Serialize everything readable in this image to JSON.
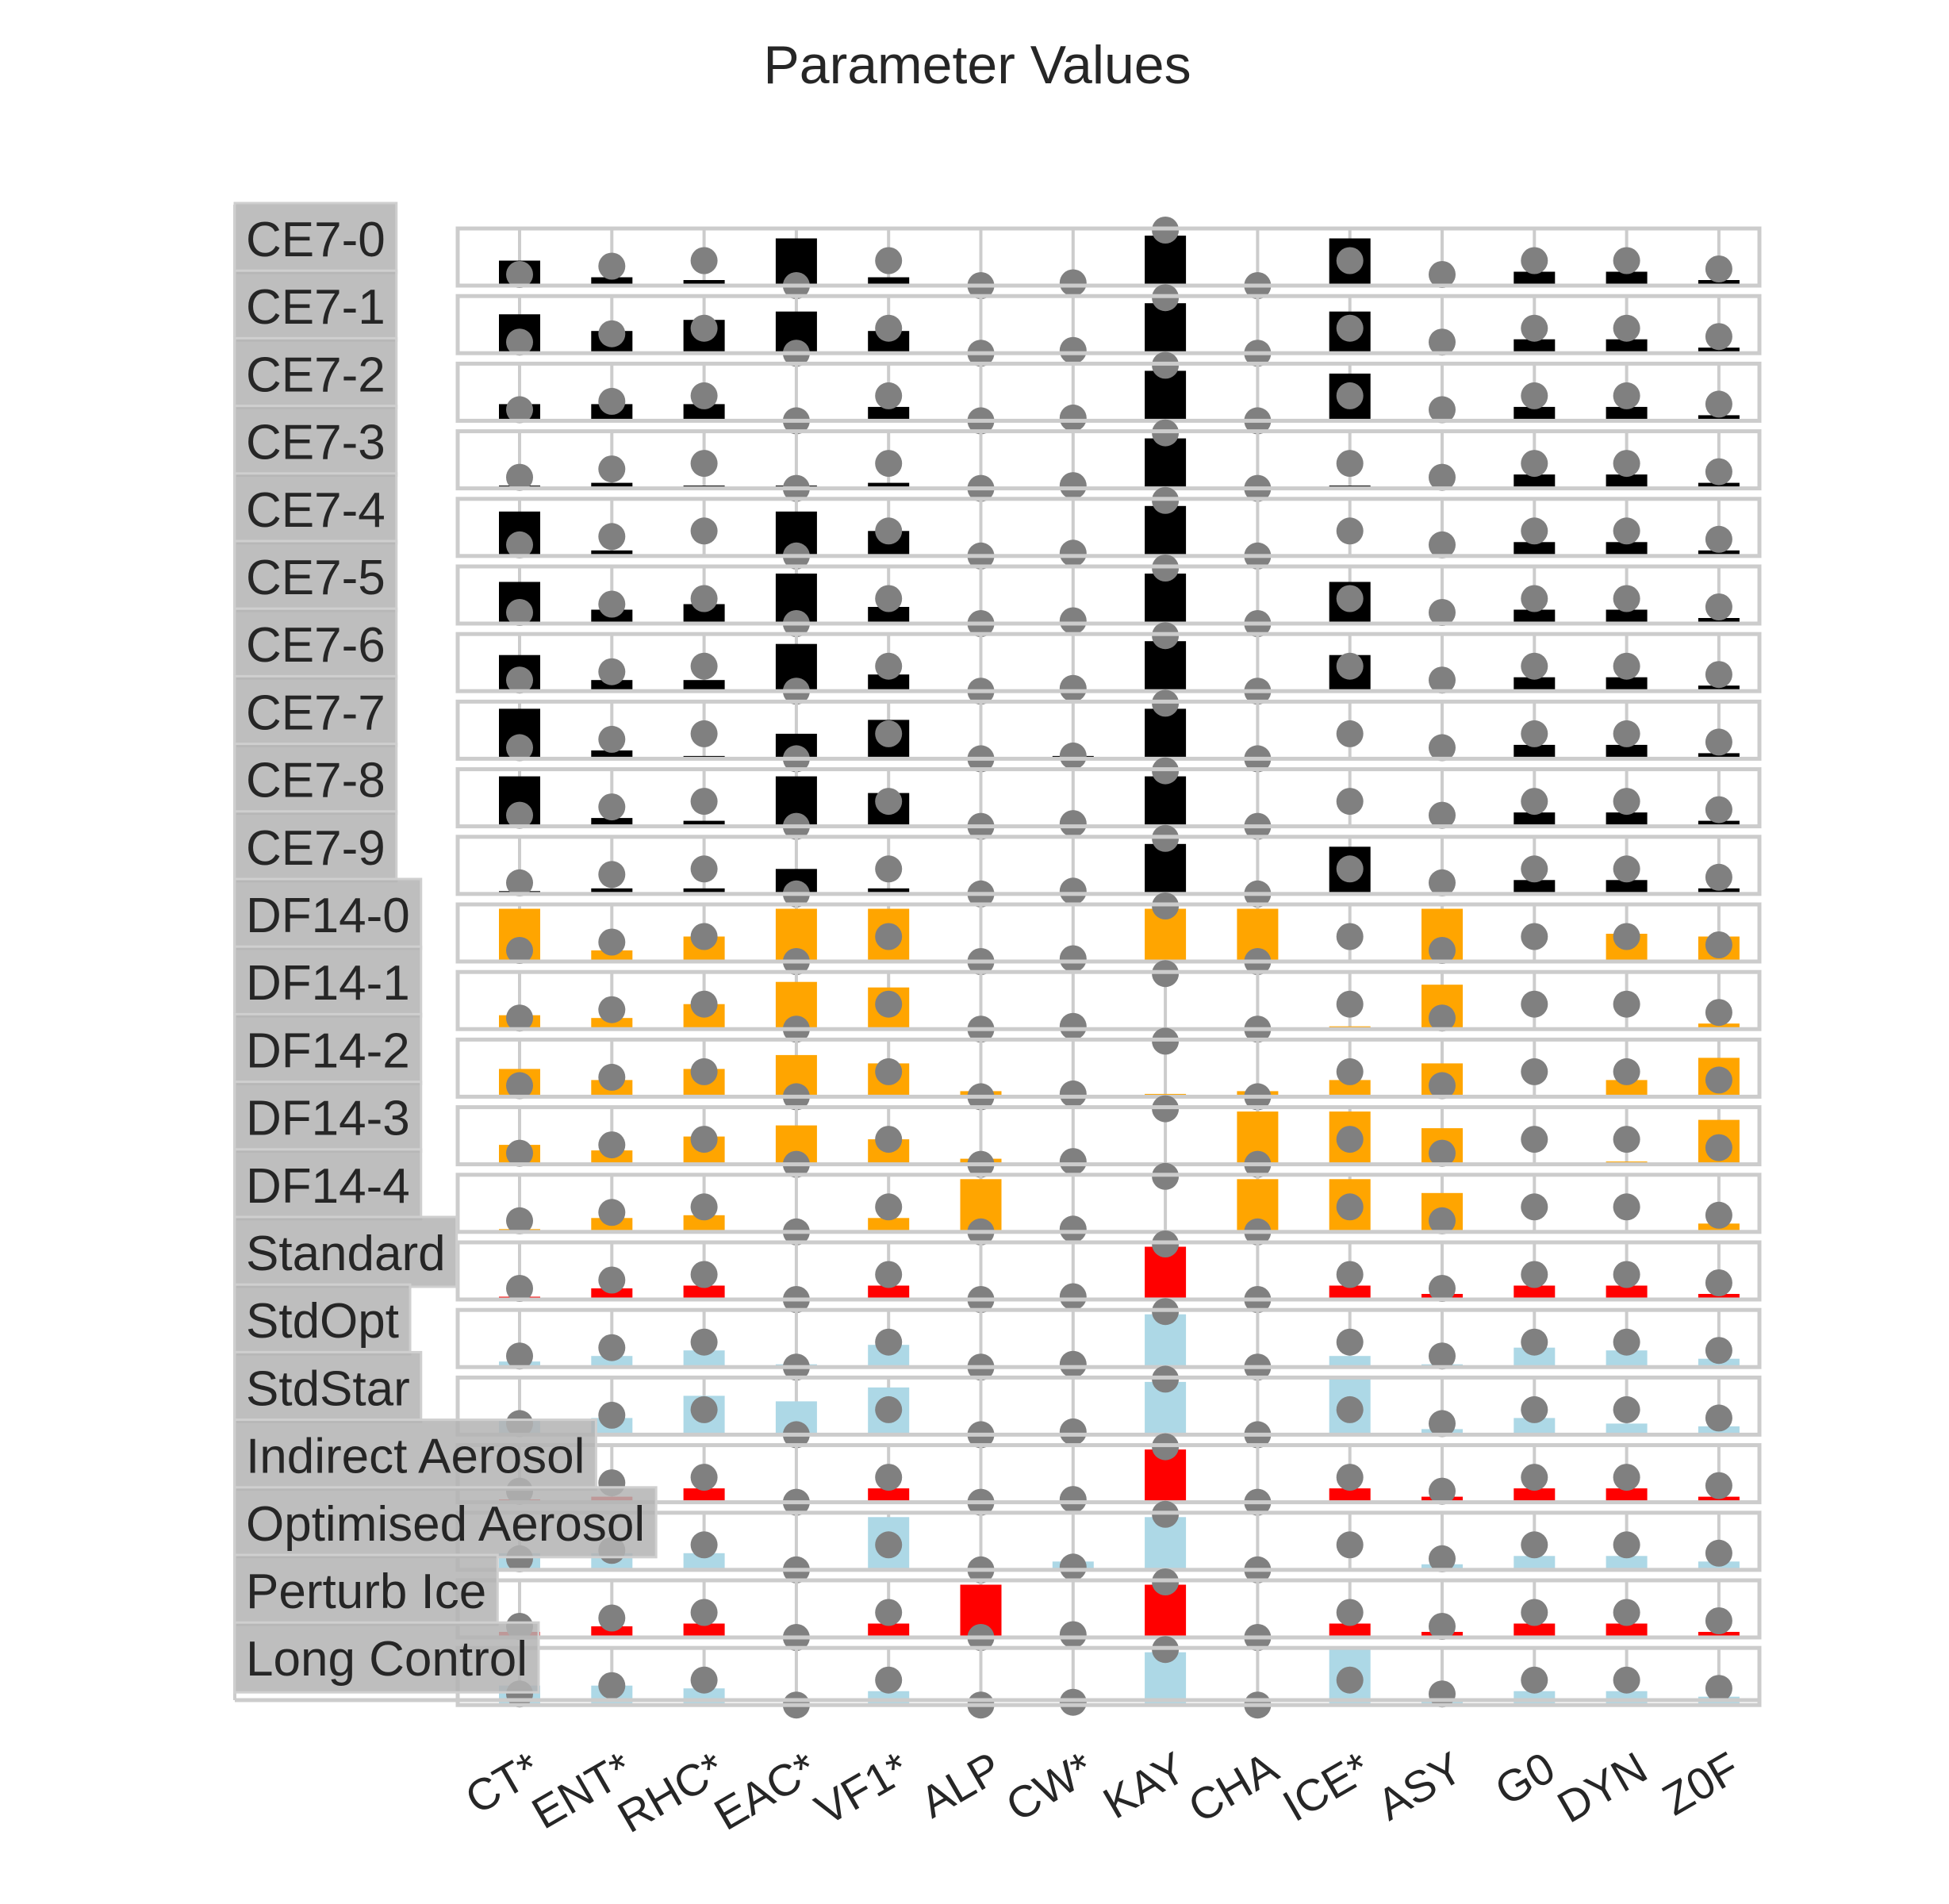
{
  "chart_data": {
    "type": "bar",
    "title": "Parameter Values",
    "xlabel": "",
    "ylabel": "",
    "ylim": [
      0,
      1
    ],
    "grid": true,
    "categories": [
      "CT*",
      "ENT*",
      "RHC*",
      "EAC*",
      "VF1*",
      "ALP",
      "CW*",
      "KAY",
      "CHA",
      "ICE*",
      "ASY",
      "G0",
      "DYN",
      "Z0F"
    ],
    "default_values": [
      0.2,
      0.35,
      0.45,
      0.0,
      0.45,
      0.0,
      0.05,
      1.0,
      0.0,
      0.45,
      0.2,
      0.45,
      0.45,
      0.3
    ],
    "colors": {
      "CE7": "#000000",
      "DF14": "#ffa500",
      "Perturbed": "#ff0000",
      "Optimised": "#add8e6",
      "default_marker": "#808080"
    },
    "series": [
      {
        "name": "CE7-0",
        "color": "#000000",
        "values": [
          0.45,
          0.15,
          0.1,
          0.85,
          0.15,
          0.0,
          0.0,
          0.9,
          0.0,
          0.85,
          0.0,
          0.25,
          0.25,
          0.1
        ]
      },
      {
        "name": "CE7-1",
        "color": "#000000",
        "values": [
          0.7,
          0.4,
          0.6,
          0.75,
          0.4,
          0.0,
          0.0,
          0.9,
          0.0,
          0.75,
          0.0,
          0.25,
          0.25,
          0.1
        ]
      },
      {
        "name": "CE7-2",
        "color": "#000000",
        "values": [
          0.3,
          0.3,
          0.3,
          0.0,
          0.25,
          0.0,
          0.0,
          0.9,
          0.0,
          0.85,
          0.0,
          0.25,
          0.25,
          0.1
        ]
      },
      {
        "name": "CE7-3",
        "color": "#000000",
        "values": [
          0.05,
          0.1,
          0.05,
          0.05,
          0.1,
          0.0,
          0.0,
          0.9,
          0.0,
          0.05,
          0.0,
          0.25,
          0.25,
          0.1
        ]
      },
      {
        "name": "CE7-4",
        "color": "#000000",
        "values": [
          0.8,
          0.1,
          0.0,
          0.8,
          0.45,
          0.0,
          0.0,
          0.9,
          0.0,
          0.0,
          0.0,
          0.25,
          0.25,
          0.1
        ]
      },
      {
        "name": "CE7-5",
        "color": "#000000",
        "values": [
          0.75,
          0.25,
          0.35,
          0.9,
          0.3,
          0.0,
          0.0,
          0.9,
          0.0,
          0.75,
          0.0,
          0.25,
          0.25,
          0.1
        ]
      },
      {
        "name": "CE7-6",
        "color": "#000000",
        "values": [
          0.65,
          0.2,
          0.2,
          0.85,
          0.3,
          0.0,
          0.0,
          0.9,
          0.0,
          0.65,
          0.0,
          0.25,
          0.25,
          0.1
        ]
      },
      {
        "name": "CE7-7",
        "color": "#000000",
        "values": [
          0.9,
          0.15,
          0.05,
          0.45,
          0.7,
          0.0,
          0.05,
          0.9,
          0.0,
          0.0,
          0.0,
          0.25,
          0.25,
          0.1
        ]
      },
      {
        "name": "CE7-8",
        "color": "#000000",
        "values": [
          0.9,
          0.15,
          0.1,
          0.9,
          0.6,
          0.0,
          0.0,
          0.9,
          0.0,
          0.0,
          0.0,
          0.25,
          0.25,
          0.1
        ]
      },
      {
        "name": "CE7-9",
        "color": "#000000",
        "values": [
          0.05,
          0.1,
          0.1,
          0.45,
          0.1,
          0.0,
          0.0,
          0.9,
          0.0,
          0.85,
          0.0,
          0.25,
          0.25,
          0.1
        ]
      },
      {
        "name": "DF14-0",
        "color": "#ffa500",
        "values": [
          0.95,
          0.2,
          0.45,
          0.95,
          0.95,
          0.0,
          0.0,
          0.95,
          0.95,
          0.0,
          0.95,
          0.0,
          0.5,
          0.45
        ]
      },
      {
        "name": "DF14-1",
        "color": "#ffa500",
        "values": [
          0.25,
          0.2,
          0.45,
          0.85,
          0.75,
          0.0,
          0.0,
          0.0,
          0.0,
          0.05,
          0.8,
          0.0,
          0.0,
          0.1
        ]
      },
      {
        "name": "DF14-2",
        "color": "#ffa500",
        "values": [
          0.5,
          0.3,
          0.5,
          0.75,
          0.6,
          0.1,
          0.0,
          0.05,
          0.1,
          0.3,
          0.6,
          0.0,
          0.3,
          0.7
        ]
      },
      {
        "name": "DF14-3",
        "color": "#ffa500",
        "values": [
          0.35,
          0.25,
          0.5,
          0.7,
          0.45,
          0.1,
          0.0,
          0.0,
          0.95,
          0.95,
          0.65,
          0.0,
          0.05,
          0.8
        ]
      },
      {
        "name": "DF14-4",
        "color": "#ffa500",
        "values": [
          0.05,
          0.25,
          0.3,
          0.0,
          0.25,
          0.95,
          0.0,
          0.0,
          0.95,
          0.95,
          0.7,
          0.0,
          0.0,
          0.15
        ]
      },
      {
        "name": "Standard",
        "color": "#ff0000",
        "values": [
          0.05,
          0.2,
          0.25,
          0.0,
          0.25,
          0.0,
          0.0,
          0.95,
          0.0,
          0.25,
          0.1,
          0.25,
          0.25,
          0.1
        ]
      },
      {
        "name": "StdOpt",
        "color": "#add8e6",
        "values": [
          0.1,
          0.2,
          0.3,
          0.05,
          0.4,
          0.0,
          0.0,
          0.95,
          0.0,
          0.2,
          0.05,
          0.35,
          0.3,
          0.15
        ]
      },
      {
        "name": "StdStar",
        "color": "#add8e6",
        "values": [
          0.25,
          0.3,
          0.7,
          0.6,
          0.85,
          0.0,
          0.0,
          0.95,
          0.0,
          1.0,
          0.1,
          0.3,
          0.2,
          0.15
        ]
      },
      {
        "name": "Indirect Aerosol",
        "color": "#ff0000",
        "values": [
          0.05,
          0.1,
          0.25,
          0.0,
          0.25,
          0.0,
          0.0,
          0.95,
          0.0,
          0.25,
          0.1,
          0.25,
          0.25,
          0.1
        ]
      },
      {
        "name": "Optimised Aerosol",
        "color": "#add8e6",
        "values": [
          0.3,
          0.3,
          0.3,
          0.0,
          0.95,
          0.0,
          0.15,
          0.95,
          0.0,
          0.0,
          0.1,
          0.25,
          0.25,
          0.15
        ]
      },
      {
        "name": "Perturb Ice",
        "color": "#ff0000",
        "values": [
          0.1,
          0.2,
          0.25,
          0.0,
          0.25,
          0.95,
          0.0,
          0.95,
          0.0,
          0.25,
          0.1,
          0.25,
          0.25,
          0.1
        ]
      },
      {
        "name": "Long Control",
        "color": "#add8e6",
        "values": [
          0.35,
          0.35,
          0.3,
          0.0,
          0.25,
          0.0,
          0.0,
          0.95,
          0.0,
          1.0,
          0.1,
          0.25,
          0.25,
          0.15
        ]
      }
    ]
  }
}
